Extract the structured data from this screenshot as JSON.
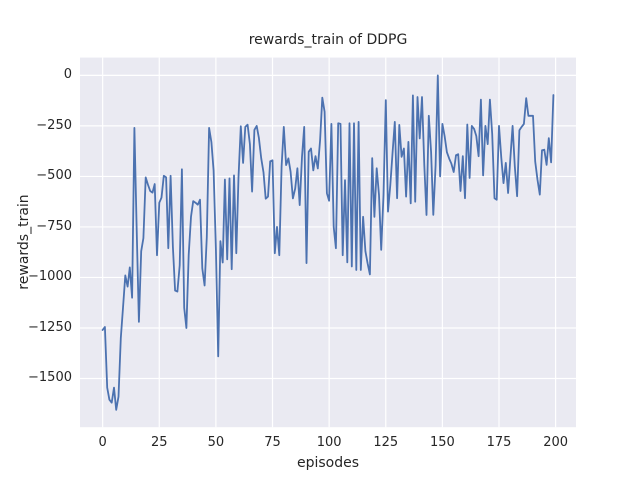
{
  "chart_data": {
    "type": "line",
    "title": "rewards_train of DDPG",
    "xlabel": "episodes",
    "ylabel": "rewards_train",
    "grid": true,
    "legend": "none",
    "plot_bg": "#eaeaf2",
    "grid_color": "#ffffff",
    "text_color": "#262626",
    "x_range": [
      0,
      199
    ],
    "xlim": [
      -10,
      209
    ],
    "ylim": [
      -1741,
      88
    ],
    "xticks": {
      "values": [
        0,
        25,
        50,
        75,
        100,
        125,
        150,
        175,
        200
      ],
      "labels": [
        "0",
        "25",
        "50",
        "75",
        "100",
        "125",
        "150",
        "175",
        "200"
      ]
    },
    "yticks": {
      "values": [
        0,
        -250,
        -500,
        -750,
        -1000,
        -1250,
        -1500
      ],
      "labels": [
        "0",
        "−250",
        "−500",
        "−750",
        "−1000",
        "−1250",
        "−1500"
      ]
    },
    "series": [
      {
        "name": "rewards_train",
        "color": "#4c72b0",
        "line_width": 1.8,
        "values": [
          -1260,
          -1245,
          -1545,
          -1605,
          -1620,
          -1545,
          -1655,
          -1590,
          -1300,
          -1150,
          -990,
          -1045,
          -950,
          -1100,
          -260,
          -745,
          -1220,
          -870,
          -805,
          -505,
          -540,
          -572,
          -580,
          -538,
          -890,
          -630,
          -605,
          -497,
          -505,
          -855,
          -497,
          -850,
          -1065,
          -1070,
          -940,
          -465,
          -1150,
          -1250,
          -888,
          -700,
          -622,
          -630,
          -640,
          -615,
          -955,
          -1040,
          -800,
          -260,
          -330,
          -470,
          -860,
          -1390,
          -820,
          -926,
          -515,
          -910,
          -510,
          -959,
          -495,
          -880,
          -505,
          -252,
          -433,
          -255,
          -244,
          -340,
          -575,
          -270,
          -250,
          -310,
          -410,
          -480,
          -610,
          -600,
          -425,
          -420,
          -880,
          -750,
          -890,
          -450,
          -255,
          -444,
          -411,
          -477,
          -609,
          -560,
          -460,
          -642,
          -403,
          -255,
          -929,
          -378,
          -362,
          -470,
          -400,
          -461,
          -321,
          -110,
          -180,
          -583,
          -620,
          -240,
          -750,
          -855,
          -237,
          -240,
          -890,
          -518,
          -925,
          -237,
          -946,
          -237,
          -963,
          -230,
          -963,
          -700,
          -870,
          -930,
          -985,
          -410,
          -700,
          -460,
          -592,
          -863,
          -592,
          -123,
          -674,
          -543,
          -387,
          -230,
          -608,
          -245,
          -403,
          -362,
          -600,
          -329,
          -633,
          -99,
          -625,
          -107,
          -312,
          -107,
          -444,
          -691,
          -200,
          -380,
          -690,
          -444,
          0,
          -500,
          -240,
          -300,
          -380,
          -412,
          -437,
          -478,
          -395,
          -390,
          -572,
          -400,
          -608,
          -243,
          -508,
          -250,
          -265,
          -300,
          -400,
          -120,
          -495,
          -250,
          -340,
          -120,
          -290,
          -608,
          -615,
          -250,
          -408,
          -533,
          -433,
          -582,
          -415,
          -250,
          -450,
          -598,
          -272,
          -255,
          -240,
          -113,
          -200,
          -200,
          -200,
          -426,
          -516,
          -590,
          -370,
          -368,
          -443,
          -311,
          -430,
          -97
        ]
      }
    ]
  }
}
